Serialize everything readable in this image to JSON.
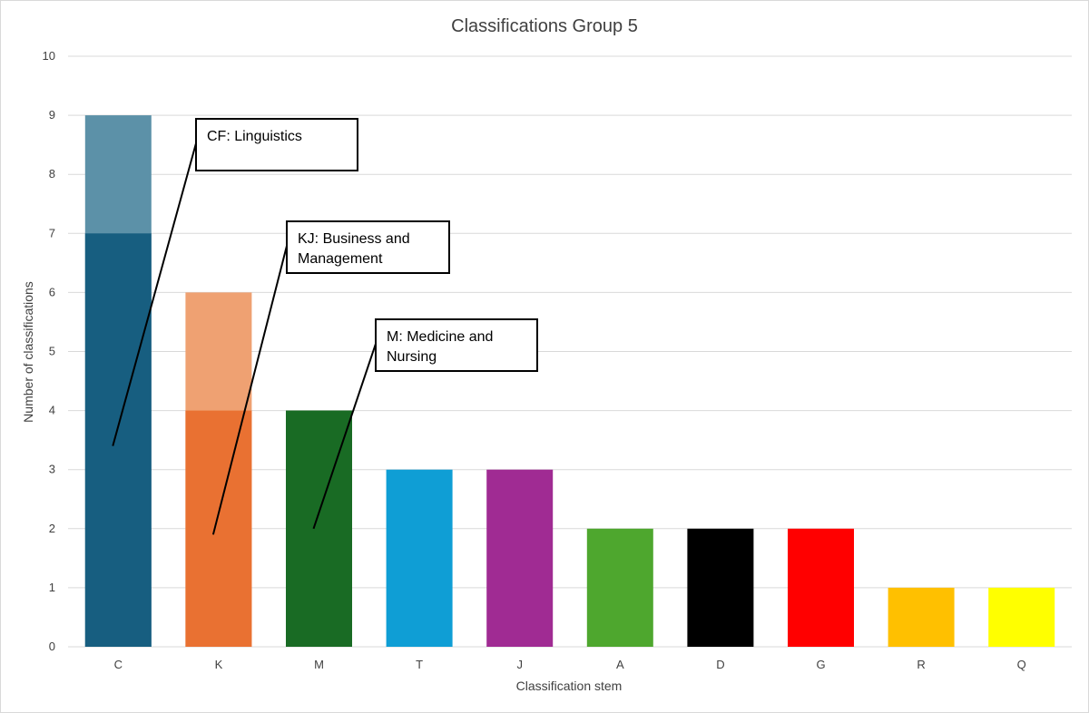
{
  "chart_data": {
    "type": "bar",
    "title": "Classifications Group 5",
    "xlabel": "Classification stem",
    "ylabel": "Number of classifications",
    "ylim": [
      0,
      10
    ],
    "yticks": [
      0,
      1,
      2,
      3,
      4,
      5,
      6,
      7,
      8,
      9,
      10
    ],
    "grid": true,
    "categories": [
      "C",
      "K",
      "M",
      "T",
      "J",
      "A",
      "D",
      "G",
      "R",
      "Q"
    ],
    "values": [
      9,
      6,
      4,
      3,
      3,
      2,
      2,
      2,
      1,
      1
    ],
    "highlighted_subset": [
      7,
      4,
      4,
      0,
      0,
      0,
      0,
      0,
      0,
      0
    ],
    "colors": [
      "#175E80",
      "#E97132",
      "#196B24",
      "#0F9ED5",
      "#A02B93",
      "#4EA72E",
      "#000000",
      "#FF0000",
      "#FFC000",
      "#FFFF00"
    ],
    "light_colors": [
      "#5C91A8",
      "#EFA172",
      "#196B24",
      "#0F9ED5",
      "#A02B93",
      "#4EA72E",
      "#000000",
      "#FF0000",
      "#FFC000",
      "#FFFF00"
    ],
    "annotations": [
      {
        "lines": [
          "CF: Linguistics"
        ],
        "category": "C",
        "value": 3.4
      },
      {
        "lines": [
          "KJ: Business and",
          "Management"
        ],
        "category": "K",
        "value": 1.9
      },
      {
        "lines": [
          "M: Medicine and",
          "Nursing"
        ],
        "category": "M",
        "value": 2.0
      }
    ]
  }
}
